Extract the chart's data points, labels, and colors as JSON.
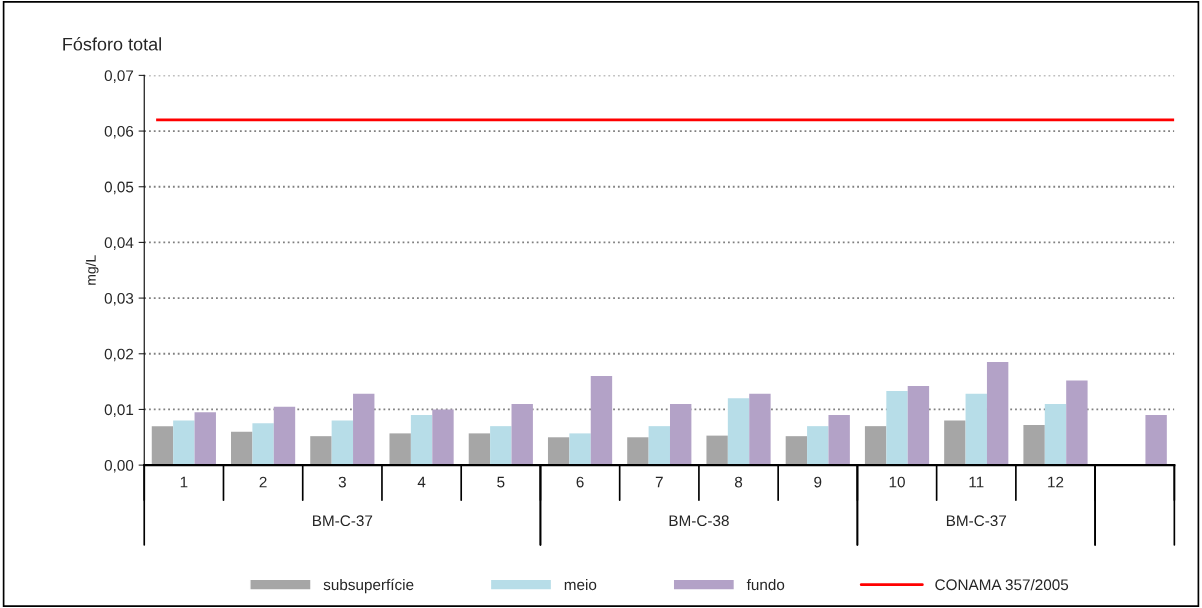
{
  "chart_data": {
    "type": "bar",
    "title": "Fósforo total",
    "ylabel": "mg/L",
    "categories": [
      "1",
      "2",
      "3",
      "4",
      "5",
      "6",
      "7",
      "8",
      "9",
      "10",
      "11",
      "12",
      null
    ],
    "series": [
      {
        "name": "subsuperfície",
        "color": "#a6a6a6",
        "values": [
          0.007,
          0.006,
          0.0052,
          0.0057,
          0.0057,
          0.005,
          0.005,
          0.0053,
          0.0052,
          0.007,
          0.008,
          0.0072,
          null
        ]
      },
      {
        "name": "meio",
        "color": "#b7dde8",
        "values": [
          0.008,
          0.0075,
          0.008,
          0.009,
          0.007,
          0.0057,
          0.007,
          0.012,
          0.007,
          0.0133,
          0.0128,
          0.011,
          null
        ]
      },
      {
        "name": "fundo",
        "color": "#b3a2c7",
        "values": [
          0.0095,
          0.0105,
          0.0128,
          0.01,
          0.011,
          0.016,
          0.011,
          0.0128,
          0.009,
          0.0142,
          0.0185,
          0.0152,
          0.009
        ]
      }
    ],
    "ylim": [
      0,
      0.07
    ],
    "yticks": [
      {
        "value": 0,
        "label": "0,00"
      },
      {
        "value": 0.01,
        "label": "0,01"
      },
      {
        "value": 0.02,
        "label": "0,02"
      },
      {
        "value": 0.03,
        "label": "0,03"
      },
      {
        "value": 0.04,
        "label": "0,04"
      },
      {
        "value": 0.05,
        "label": "0,05"
      },
      {
        "value": 0.06,
        "label": "0,06"
      },
      {
        "value": 0.07,
        "label": "0,07"
      }
    ],
    "ref_lines": [
      {
        "axis": "y",
        "value": 0.062,
        "label": "CONAMA 357/2005",
        "color": "#ff0000",
        "line_style": "solid"
      }
    ],
    "annotations": [
      "BM-C-37",
      "BM-C-38",
      "BM-C-37"
    ],
    "grid": "y",
    "legend": "bottom"
  }
}
